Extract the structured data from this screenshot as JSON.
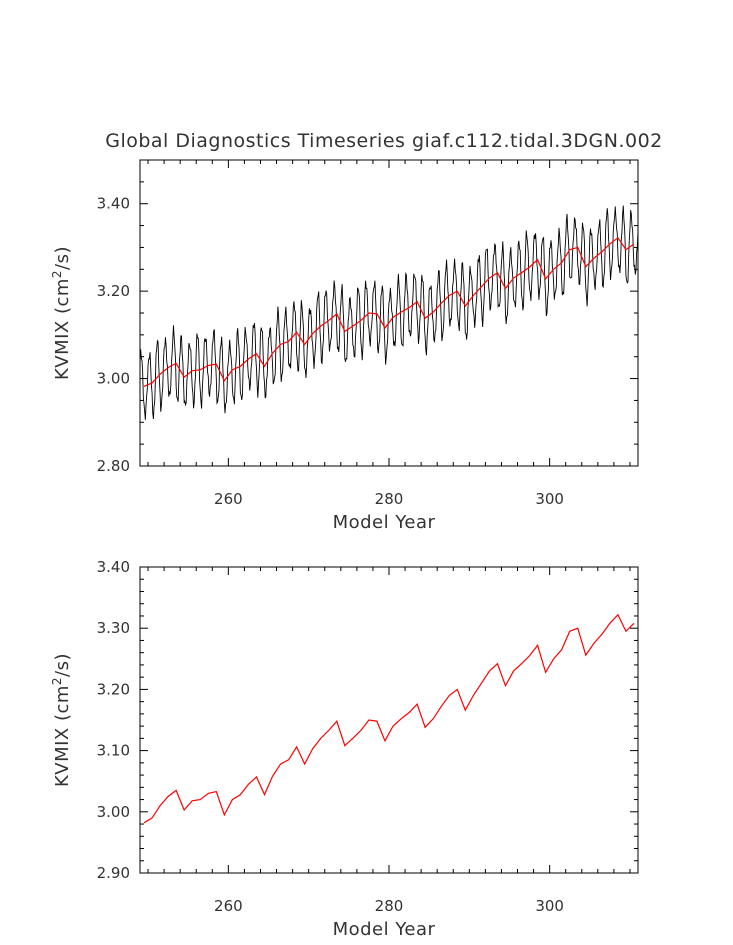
{
  "page_title": "Global Diagnostics Timeseries giaf.c112.tidal.3DGN.002",
  "colors": {
    "monthly": "#000000",
    "annual": "#ff0000"
  },
  "chart_data": [
    {
      "type": "line",
      "title": "Global Diagnostics Timeseries giaf.c112.tidal.3DGN.002",
      "xlabel": "Model Year",
      "ylabel": "KVMIX (cm²/s)",
      "xlim": [
        249,
        311
      ],
      "ylim": [
        2.8,
        3.5
      ],
      "xticks": [
        260,
        280,
        300
      ],
      "xtick_labels": [
        "260",
        "280",
        "300"
      ],
      "yticks": [
        2.8,
        3.0,
        3.2,
        3.4
      ],
      "ytick_labels": [
        "2.80",
        "3.00",
        "3.20",
        "3.40"
      ],
      "series": [
        {
          "name": "monthly",
          "kind": "monthly_cycle",
          "amplitude": 0.075,
          "offset_phase": 0.0
        },
        {
          "name": "annual",
          "kind": "annual_mean"
        }
      ],
      "annual_x": [
        249.5,
        250.5,
        251.5,
        252.5,
        253.5,
        254.5,
        255.5,
        256.5,
        257.5,
        258.5,
        259.5,
        260.5,
        261.5,
        262.5,
        263.5,
        264.5,
        265.5,
        266.5,
        267.5,
        268.5,
        269.5,
        270.5,
        271.5,
        272.5,
        273.5,
        274.5,
        275.5,
        276.5,
        277.5,
        278.5,
        279.5,
        280.5,
        281.5,
        282.5,
        283.5,
        284.5,
        285.5,
        286.5,
        287.5,
        288.5,
        289.5,
        290.5,
        291.5,
        292.5,
        293.5,
        294.5,
        295.5,
        296.5,
        297.5,
        298.5,
        299.5,
        300.5,
        301.5,
        302.5,
        303.5,
        304.5,
        305.5,
        306.5,
        307.5,
        308.5,
        309.5,
        310.5
      ],
      "annual_values": [
        2.982,
        2.99,
        3.01,
        3.025,
        3.035,
        3.003,
        3.018,
        3.02,
        3.03,
        3.033,
        2.995,
        3.02,
        3.028,
        3.045,
        3.057,
        3.028,
        3.058,
        3.078,
        3.085,
        3.106,
        3.078,
        3.103,
        3.12,
        3.133,
        3.148,
        3.108,
        3.12,
        3.133,
        3.15,
        3.148,
        3.116,
        3.14,
        3.152,
        3.162,
        3.176,
        3.138,
        3.152,
        3.172,
        3.19,
        3.2,
        3.166,
        3.19,
        3.21,
        3.23,
        3.242,
        3.206,
        3.23,
        3.242,
        3.255,
        3.272,
        3.228,
        3.25,
        3.265,
        3.295,
        3.3,
        3.256,
        3.275,
        3.29,
        3.308,
        3.322,
        3.295,
        3.308
      ]
    },
    {
      "type": "line",
      "title": "",
      "xlabel": "Model Year",
      "ylabel": "KVMIX (cm²/s)",
      "xlim": [
        249,
        311
      ],
      "ylim": [
        2.9,
        3.4
      ],
      "xticks": [
        260,
        280,
        300
      ],
      "xtick_labels": [
        "260",
        "280",
        "300"
      ],
      "yticks": [
        2.9,
        3.0,
        3.1,
        3.2,
        3.3,
        3.4
      ],
      "ytick_labels": [
        "2.90",
        "3.00",
        "3.10",
        "3.20",
        "3.30",
        "3.40"
      ],
      "series": [
        {
          "name": "annual",
          "kind": "annual_mean"
        }
      ]
    }
  ]
}
